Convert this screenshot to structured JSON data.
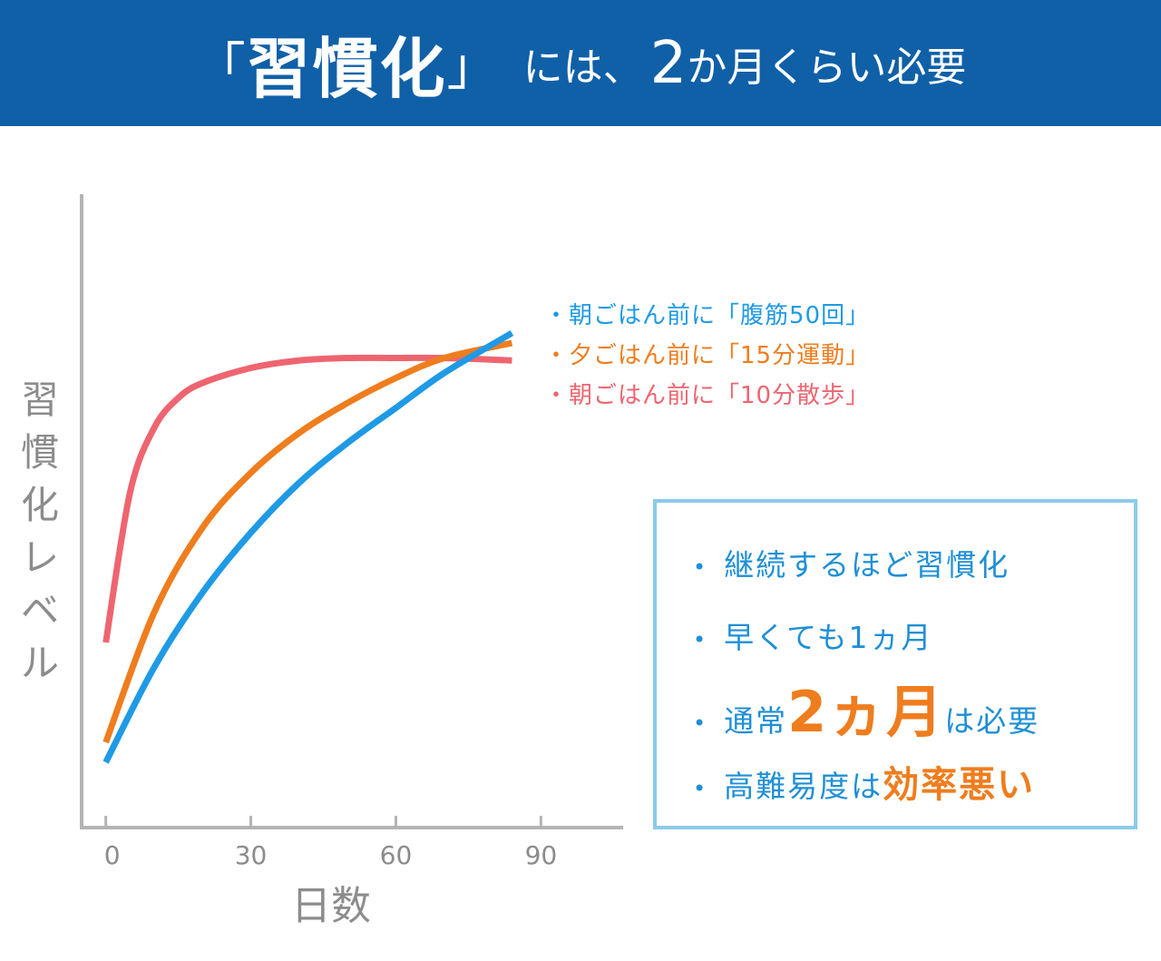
{
  "header": {
    "title_open": "「",
    "title_strong": "習慣化",
    "title_close": "」",
    "title_part1": "には、",
    "title_num": "2",
    "title_part2": "か",
    "title_part3": "月くらい必要"
  },
  "chart_data": {
    "type": "line",
    "xlabel": "日数",
    "ylabel": "習慣化レベル",
    "x_ticks": [
      "0",
      "30",
      "60",
      "90"
    ],
    "xlim": [
      -5,
      107
    ],
    "ylim": [
      0,
      100
    ],
    "series": [
      {
        "name": "・朝ごはん前に「腹筋50回」",
        "color": "#1f9ae5",
        "x": [
          0,
          10,
          20,
          30,
          40,
          50,
          60,
          70,
          84
        ],
        "y": [
          8,
          27,
          42,
          54,
          64,
          72,
          79,
          86,
          94
        ]
      },
      {
        "name": "・夕ごはん前に「15分運動」",
        "color": "#ef7d1e",
        "x": [
          0,
          10,
          20,
          30,
          40,
          50,
          60,
          70,
          84
        ],
        "y": [
          12,
          38,
          55,
          66,
          74,
          80,
          85,
          89,
          92
        ]
      },
      {
        "name": "・朝ごはん前に「10分散歩」",
        "color": "#ee6570",
        "x": [
          0,
          5,
          10,
          15,
          20,
          30,
          40,
          50,
          60,
          70,
          84
        ],
        "y": [
          32,
          62,
          75,
          81,
          84,
          87,
          88.5,
          89,
          89,
          89,
          88.5
        ]
      }
    ]
  },
  "notes": {
    "bullet": "•",
    "item1": "継続するほど習慣化",
    "item2": "早くても1ヵ月",
    "item3_pre": "通常",
    "item3_hl": "2ヵ月",
    "item3_post": "は必要",
    "item4_pre": "高難易度は",
    "item4_hl": "効率悪い"
  },
  "colors": {
    "header_bg": "#1060a8",
    "axis": "#b4b4b4",
    "note_text": "#1f8fd6",
    "note_border": "#8ccaea",
    "highlight": "#ef7d1e"
  }
}
